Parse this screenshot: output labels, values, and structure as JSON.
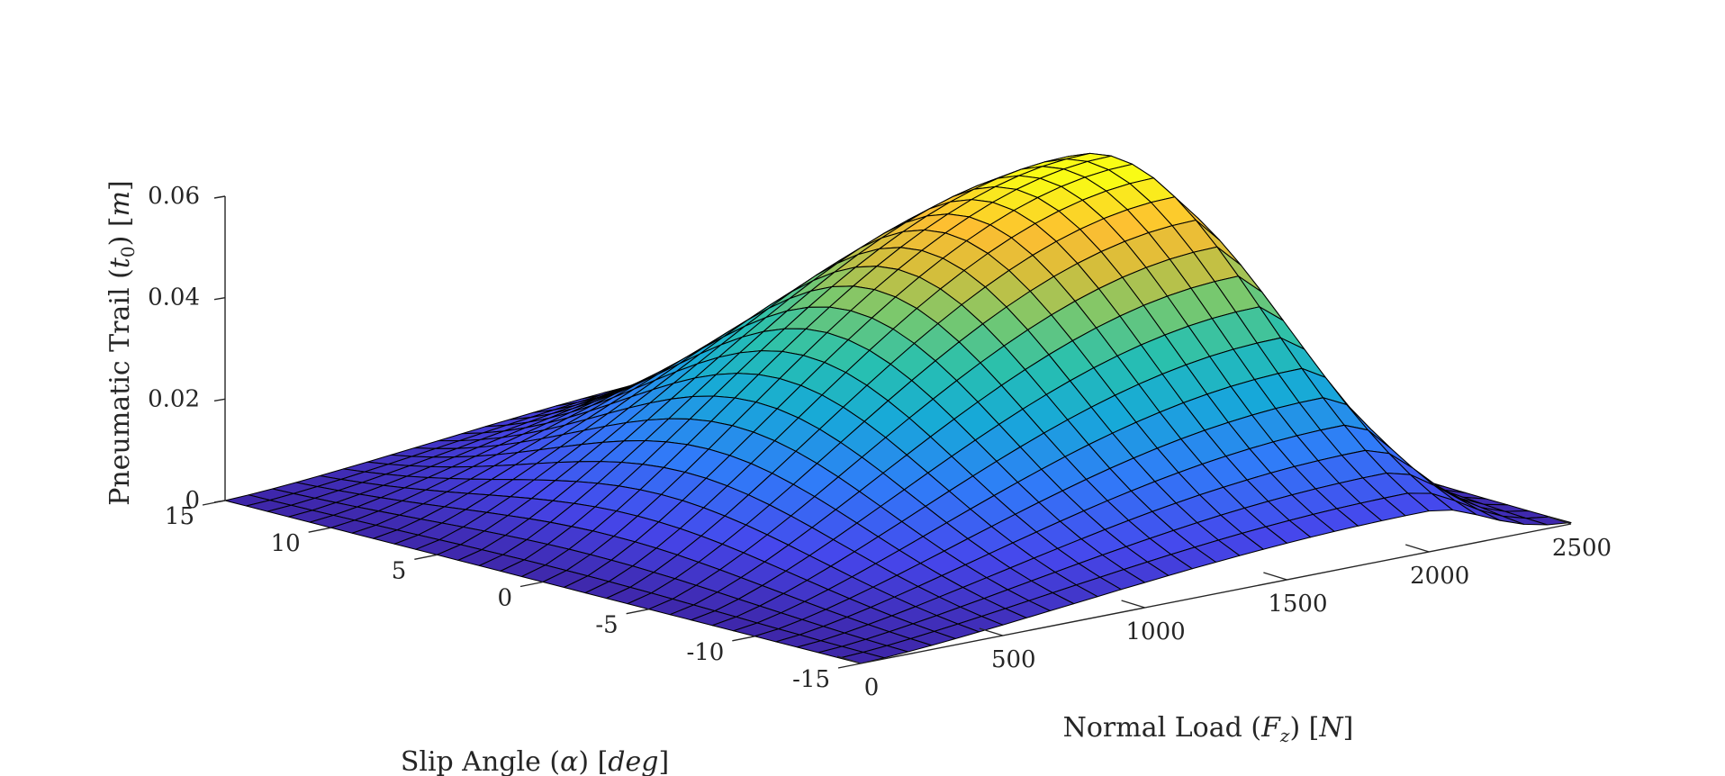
{
  "chart_data": {
    "type": "surface",
    "title": "",
    "xlabel": "Normal Load (F_z) [N]",
    "ylabel": "Slip Angle (α) [deg]",
    "zlabel": "Pneumatic Trail (t_0) [m]",
    "xlim": [
      0,
      2500
    ],
    "ylim": [
      -15,
      15
    ],
    "zlim": [
      0,
      0.06
    ],
    "x_ticks": [
      "0",
      "500",
      "1000",
      "1500",
      "2000",
      "2500"
    ],
    "y_ticks": [
      "15",
      "10",
      "5",
      "0",
      "-5",
      "-10",
      "-15"
    ],
    "z_ticks": [
      "0",
      "0.02",
      "0.04",
      "0.06"
    ],
    "grid": false,
    "colormap": "parula",
    "peak": {
      "normal_load": 2000,
      "slip_angle": 0,
      "pneumatic_trail": 0.062
    },
    "mesh": {
      "x_lines": 31,
      "y_lines": 31
    },
    "colors": {
      "axis": "#262626",
      "edge": "#000000"
    }
  },
  "labels": {
    "z_prefix": "Pneumatic Trail (",
    "z_symbol": "t",
    "z_sub": "0",
    "z_suffix": ") [",
    "z_unit": "m",
    "z_end": "]",
    "y_prefix": "Slip Angle (",
    "y_symbol": "α",
    "y_mid": ") [",
    "y_unit": "deg",
    "y_end": "]",
    "x_prefix": "Normal Load (",
    "x_symbol": "F",
    "x_sub": "z",
    "x_mid": ") [",
    "x_unit": "N",
    "x_end": "]"
  }
}
